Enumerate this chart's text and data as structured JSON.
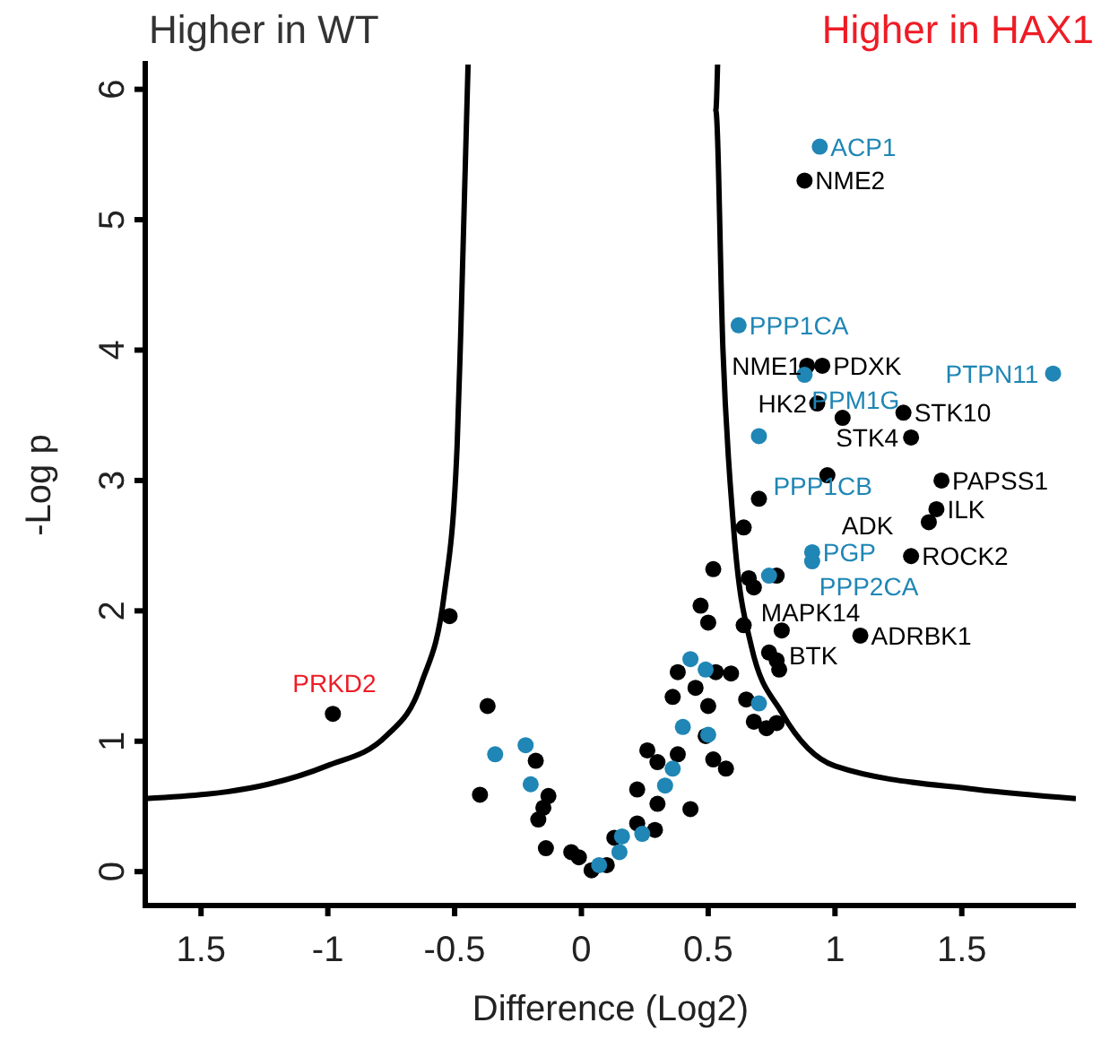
{
  "chart_data": {
    "type": "scatter",
    "title": "Higher in WT",
    "subtitle": "Higher in HAX1",
    "xlabel": "Difference (Log2)",
    "ylabel": "-Log p",
    "xlim": [
      -1.72,
      1.95
    ],
    "ylim": [
      -0.26,
      6.19
    ],
    "xticks": [
      {
        "value": -1.5,
        "label": "1.5"
      },
      -1,
      -0.5,
      0,
      0.5,
      1,
      1.5
    ],
    "yticks": [
      0,
      1,
      2,
      3,
      4,
      5,
      6
    ],
    "marker": "circle",
    "series": [
      {
        "type": "line",
        "marker": "none",
        "color": "#000000",
        "x": [
          -1.72,
          -1.235,
          -1.005,
          -0.77,
          -0.63,
          -0.54,
          -0.49,
          -0.475,
          -0.447
        ],
        "values": [
          0.56,
          0.67,
          0.81,
          1.04,
          1.45,
          2.14,
          3.27,
          4.19,
          6.19
        ]
      },
      {
        "type": "line",
        "marker": "none",
        "color": "#000000",
        "x": [
          0.537,
          0.53,
          0.558,
          0.6,
          0.67,
          0.79,
          1.0,
          1.556,
          1.95
        ],
        "values": [
          6.19,
          5.84,
          4.01,
          2.64,
          1.73,
          1.22,
          0.81,
          0.63,
          0.56
        ]
      },
      {
        "color": "#000000",
        "x": [
          0.88,
          0.89,
          0.95,
          0.93,
          1.03,
          1.27,
          1.3,
          0.97,
          1.42,
          1.4,
          1.37,
          1.3,
          0.68,
          0.79,
          1.1,
          -0.98,
          -0.52,
          -0.37,
          -0.4,
          -0.18,
          -0.13,
          -0.15,
          -0.17,
          -0.14,
          -0.04,
          -0.01,
          0.04,
          0.1,
          0.13,
          0.22,
          0.29,
          0.22,
          0.3,
          0.26,
          0.3,
          0.38,
          0.43,
          0.36,
          0.38,
          0.45,
          0.5,
          0.49,
          0.52,
          0.57,
          0.53,
          0.59,
          0.47,
          0.5,
          0.52,
          0.64,
          0.64,
          0.7,
          0.66,
          0.77,
          0.74,
          0.77,
          0.78,
          0.65,
          0.68,
          0.73,
          0.77
        ],
        "values": [
          5.3,
          3.88,
          3.88,
          3.59,
          3.48,
          3.52,
          3.33,
          3.04,
          3.0,
          2.78,
          2.68,
          2.42,
          2.18,
          1.85,
          1.81,
          1.21,
          1.96,
          1.27,
          0.59,
          0.85,
          0.58,
          0.49,
          0.4,
          0.18,
          0.15,
          0.11,
          0.01,
          0.05,
          0.26,
          0.37,
          0.32,
          0.63,
          0.52,
          0.93,
          0.84,
          0.9,
          0.48,
          1.34,
          1.53,
          1.41,
          1.27,
          1.04,
          0.86,
          0.79,
          1.53,
          1.52,
          2.04,
          1.91,
          2.32,
          1.89,
          2.64,
          2.86,
          2.25,
          2.27,
          1.68,
          1.62,
          1.55,
          1.32,
          1.15,
          1.1,
          1.14
        ]
      },
      {
        "color": "#1f86b5",
        "x": [
          0.94,
          0.62,
          0.88,
          1.86,
          0.7,
          0.91,
          0.91,
          -0.34,
          -0.22,
          -0.2,
          0.07,
          0.15,
          0.16,
          0.24,
          0.33,
          0.36,
          0.4,
          0.5,
          0.43,
          0.49,
          0.7,
          0.74
        ],
        "values": [
          5.56,
          4.19,
          3.81,
          3.82,
          3.34,
          2.45,
          2.38,
          0.9,
          0.97,
          0.67,
          0.05,
          0.15,
          0.27,
          0.29,
          0.66,
          0.79,
          1.11,
          1.05,
          1.63,
          1.55,
          1.29,
          2.27
        ]
      }
    ],
    "annotations": [
      {
        "text": "ACP1",
        "x": 0.94,
        "y": 5.56
      },
      {
        "text": "NME2",
        "x": 0.88,
        "y": 5.3
      },
      {
        "text": "PPP1CA",
        "x": 0.62,
        "y": 4.19
      },
      {
        "text": "NME1",
        "x": 0.89,
        "y": 3.88
      },
      {
        "text": "PDXK",
        "x": 0.95,
        "y": 3.88
      },
      {
        "text": "PTPN11",
        "x": 1.86,
        "y": 3.82
      },
      {
        "text": "PPM1G",
        "x": 0.88,
        "y": 3.81
      },
      {
        "text": "HK2",
        "x": 0.93,
        "y": 3.59
      },
      {
        "text": "STK10",
        "x": 1.27,
        "y": 3.52
      },
      {
        "text": "STK4",
        "x": 1.3,
        "y": 3.33
      },
      {
        "text": "PPP1CB",
        "x": 0.7,
        "y": 3.34
      },
      {
        "text": "ADK",
        "x": 0.97,
        "y": 3.04
      },
      {
        "text": "PAPSS1",
        "x": 1.42,
        "y": 3.0
      },
      {
        "text": "ILK",
        "x": 1.4,
        "y": 2.78
      },
      {
        "text": "PGP",
        "x": 0.91,
        "y": 2.45
      },
      {
        "text": "ROCK2",
        "x": 1.3,
        "y": 2.42
      },
      {
        "text": "PPP2CA",
        "x": 0.91,
        "y": 2.38
      },
      {
        "text": "MAPK14",
        "x": 0.68,
        "y": 2.18
      },
      {
        "text": "BTK",
        "x": 0.79,
        "y": 1.85
      },
      {
        "text": "ADRBK1",
        "x": 1.1,
        "y": 1.81
      },
      {
        "text": "PRKD2",
        "x": -0.98,
        "y": 1.21
      }
    ]
  }
}
